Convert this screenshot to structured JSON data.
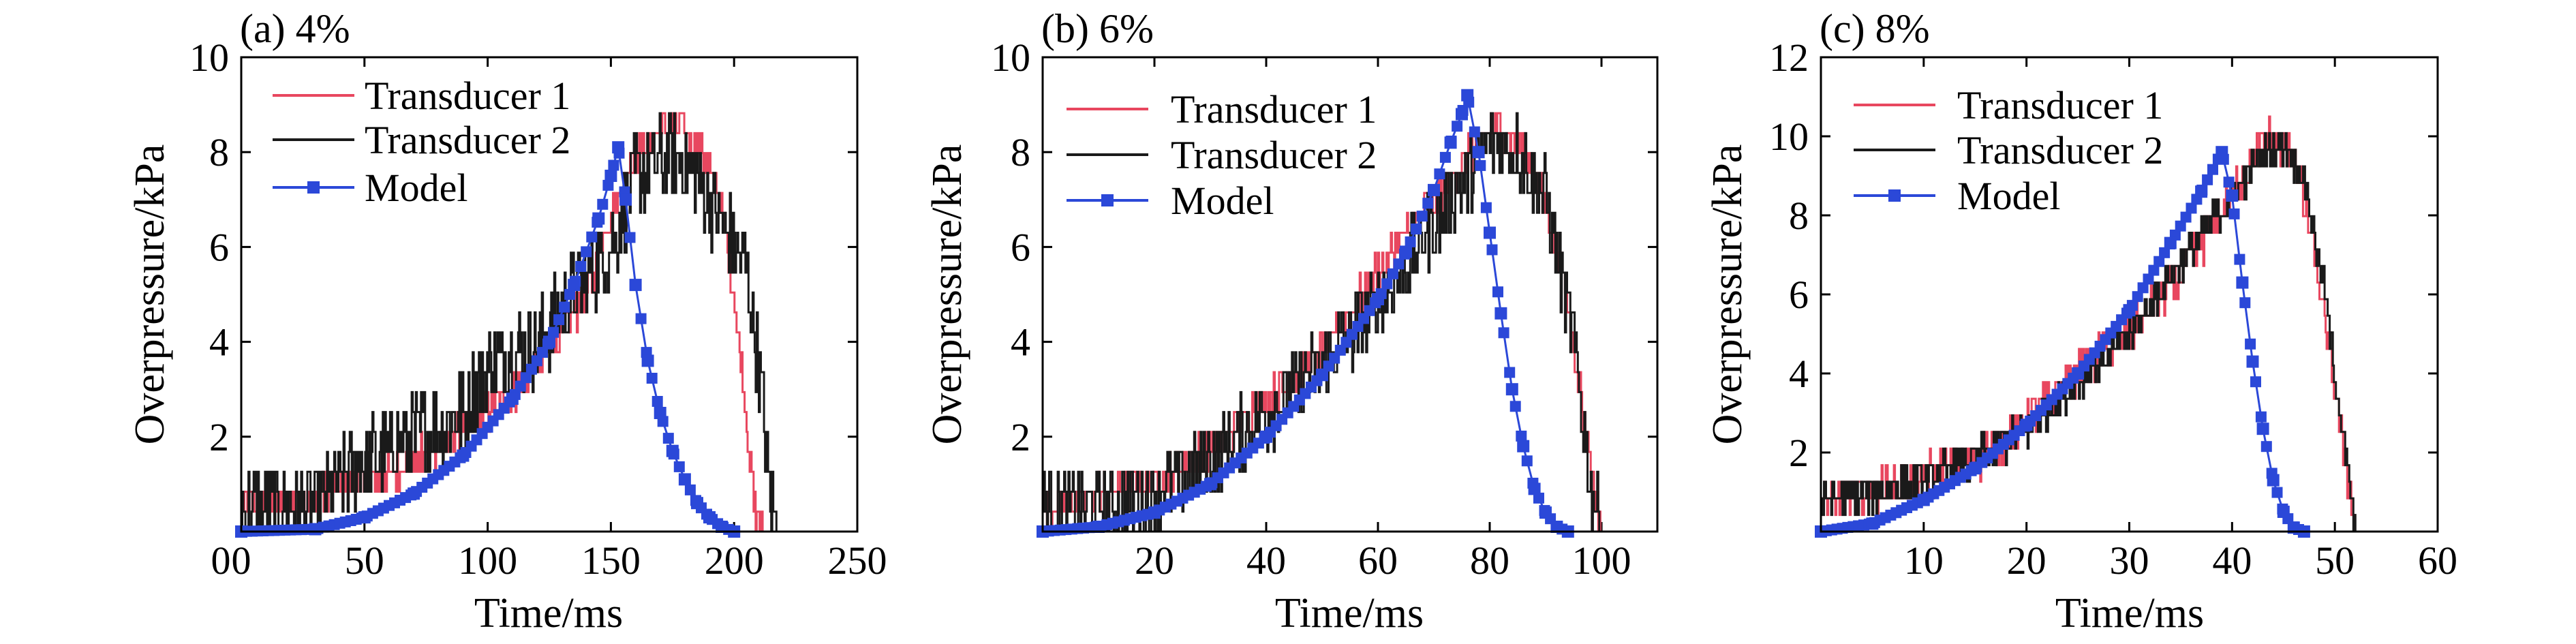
{
  "colors": {
    "transducer1": "#e8475f",
    "transducer2": "#1a1a1a",
    "model": "#2b48d8"
  },
  "chart_data": [
    {
      "type": "line",
      "panel_label": "(a) 4%",
      "xlabel": "Time/ms",
      "ylabel": "Overpressure/kPa",
      "xlim": [
        0,
        250
      ],
      "ylim": [
        0,
        10
      ],
      "xticks": [
        0,
        50,
        100,
        150,
        200,
        250
      ],
      "yticks": [
        2,
        4,
        6,
        8,
        10
      ],
      "legend_position": "top-left",
      "series": [
        {
          "name": "Transducer 1",
          "kind": "noisy",
          "noise": 0.35,
          "x": [
            0,
            20,
            40,
            60,
            80,
            100,
            120,
            140,
            150,
            160,
            170,
            178,
            185,
            195,
            203,
            208,
            212
          ],
          "y": [
            0.5,
            0.6,
            0.9,
            1.2,
            1.8,
            2.5,
            3.4,
            5.0,
            6.8,
            8.0,
            8.4,
            8.6,
            8.2,
            7.0,
            3.5,
            0.5,
            0
          ]
        },
        {
          "name": "Transducer 2",
          "kind": "noisy",
          "noise": 0.9,
          "x": [
            0,
            30,
            50,
            70,
            90,
            100,
            120,
            135,
            150,
            160,
            175,
            185,
            195,
            205,
            210,
            215,
            218
          ],
          "y": [
            0.5,
            0.5,
            1.5,
            2.0,
            2.5,
            3.5,
            4.0,
            5.0,
            6.0,
            7.5,
            8.0,
            7.5,
            6.5,
            5.5,
            3.5,
            0.5,
            0
          ]
        },
        {
          "name": "Model",
          "kind": "markers",
          "x": [
            0,
            30,
            50,
            70,
            90,
            110,
            125,
            135,
            145,
            150,
            153,
            156,
            160,
            165,
            170,
            175,
            180,
            185,
            190,
            195,
            200
          ],
          "y": [
            0,
            0.05,
            0.3,
            0.8,
            1.6,
            2.8,
            4.0,
            5.2,
            6.6,
            7.5,
            8.1,
            7.0,
            5.2,
            3.6,
            2.5,
            1.7,
            1.1,
            0.6,
            0.3,
            0.1,
            0
          ]
        }
      ]
    },
    {
      "type": "line",
      "panel_label": "(b) 6%",
      "xlabel": "Time/ms",
      "ylabel": "Overpressure/kPa",
      "xlim": [
        0,
        110
      ],
      "ylim": [
        0,
        10
      ],
      "xticks": [
        20,
        40,
        60,
        80,
        100
      ],
      "yticks": [
        2,
        4,
        6,
        8,
        10
      ],
      "legend_position": "top-left",
      "series": [
        {
          "name": "Transducer 1",
          "kind": "noisy",
          "noise": 0.35,
          "x": [
            0,
            10,
            20,
            30,
            40,
            50,
            60,
            70,
            75,
            80,
            85,
            88,
            92,
            95,
            98,
            100
          ],
          "y": [
            0.5,
            0.8,
            1.0,
            1.8,
            2.8,
            3.8,
            5.5,
            7.0,
            7.8,
            8.5,
            8.3,
            7.5,
            6.0,
            4.0,
            1.5,
            0
          ]
        },
        {
          "name": "Transducer 2",
          "kind": "noisy",
          "noise": 0.8,
          "x": [
            0,
            10,
            20,
            30,
            40,
            50,
            60,
            70,
            76,
            80,
            85,
            90,
            95,
            98,
            100
          ],
          "y": [
            0.5,
            0.5,
            0.8,
            1.5,
            2.5,
            3.5,
            4.8,
            6.5,
            7.5,
            8.3,
            8.0,
            7.0,
            4.0,
            1.0,
            0
          ]
        },
        {
          "name": "Model",
          "kind": "markers",
          "x": [
            0,
            10,
            20,
            30,
            40,
            50,
            60,
            65,
            70,
            73,
            75,
            76,
            78,
            80,
            82,
            84,
            86,
            88,
            90,
            92,
            94
          ],
          "y": [
            0,
            0.1,
            0.4,
            1.0,
            2.0,
            3.3,
            4.9,
            5.9,
            7.2,
            8.2,
            8.8,
            9.2,
            8.0,
            6.3,
            4.6,
            3.0,
            1.8,
            0.9,
            0.4,
            0.1,
            0
          ]
        }
      ]
    },
    {
      "type": "line",
      "panel_label": "(c) 8%",
      "xlabel": "Time/ms",
      "ylabel": "Overpressure/kPa",
      "xlim": [
        0,
        60
      ],
      "ylim": [
        0,
        12
      ],
      "xticks": [
        10,
        20,
        30,
        40,
        50,
        60
      ],
      "yticks": [
        2,
        4,
        6,
        8,
        10,
        12
      ],
      "legend_position": "top-left",
      "series": [
        {
          "name": "Transducer 1",
          "kind": "noisy",
          "noise": 0.5,
          "x": [
            0,
            5,
            10,
            15,
            20,
            25,
            30,
            35,
            40,
            42,
            44,
            46,
            48,
            50,
            52
          ],
          "y": [
            0.8,
            1.0,
            1.4,
            1.8,
            2.8,
            4.0,
            5.0,
            6.5,
            8.5,
            9.5,
            10.0,
            9.5,
            7.0,
            3.5,
            0
          ]
        },
        {
          "name": "Transducer 2",
          "kind": "noisy",
          "noise": 0.45,
          "x": [
            0,
            5,
            10,
            15,
            20,
            25,
            30,
            35,
            40,
            43,
            45,
            47,
            49,
            51,
            52
          ],
          "y": [
            0.8,
            1.0,
            1.3,
            1.8,
            2.6,
            3.8,
            5.0,
            6.8,
            8.5,
            9.5,
            9.8,
            9.0,
            6.0,
            2.0,
            0
          ]
        },
        {
          "name": "Model",
          "kind": "markers",
          "x": [
            0,
            5,
            10,
            15,
            20,
            25,
            30,
            34,
            37,
            39,
            40,
            41,
            42,
            43,
            44,
            45,
            46,
            47
          ],
          "y": [
            0,
            0.2,
            0.8,
            1.6,
            2.7,
            4.0,
            5.6,
            7.3,
            8.6,
            9.6,
            8.5,
            6.3,
            4.3,
            2.6,
            1.3,
            0.5,
            0.1,
            0
          ]
        }
      ]
    }
  ]
}
